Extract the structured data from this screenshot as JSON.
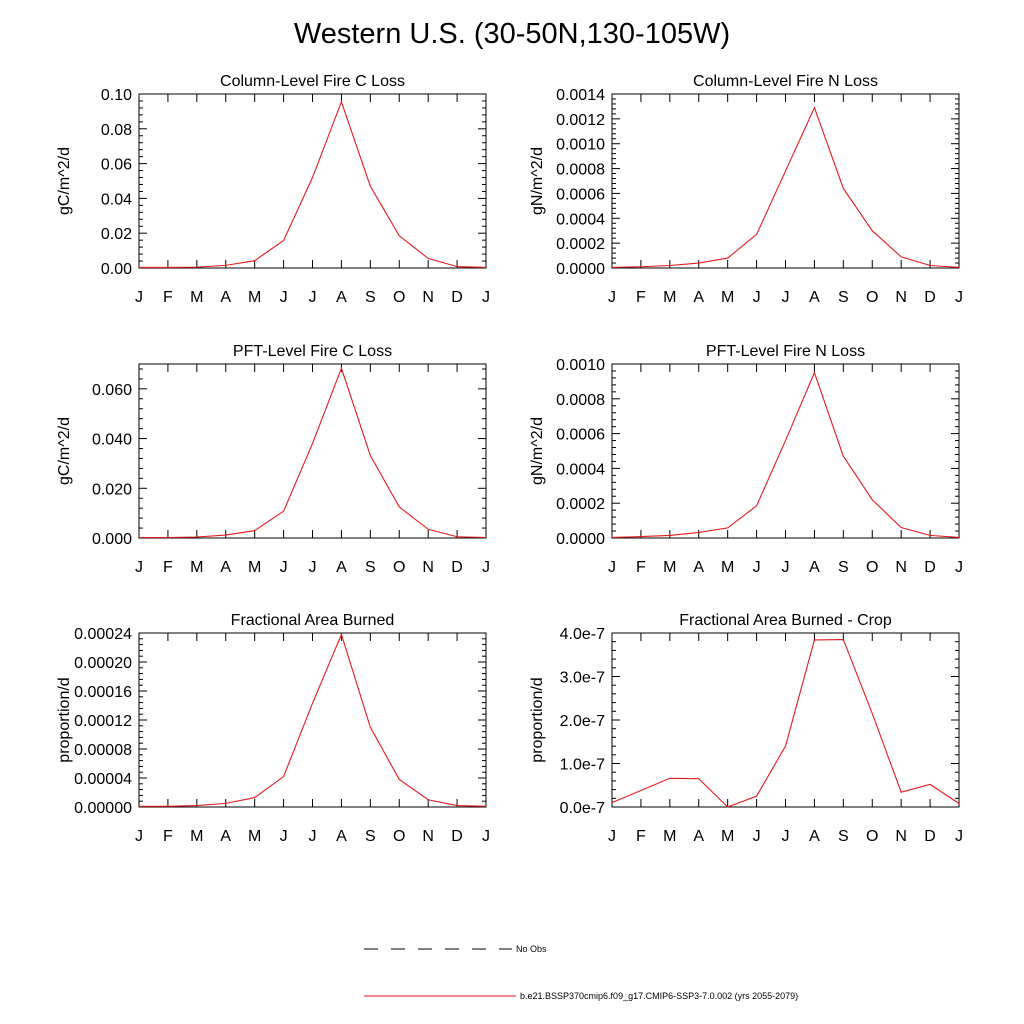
{
  "title": "Western U.S. (30-50N,130-105W)",
  "colors": {
    "series": "#e41a1c",
    "obs": "#000000",
    "axis": "#000000"
  },
  "legend": [
    {
      "label": "No Obs",
      "style": "dashed",
      "color": "#000000"
    },
    {
      "label": "b.e21.BSSP370cmip6.f09_g17.CMIP6-SSP3-7.0.002 (yrs 2055-2079)",
      "style": "solid",
      "color": "#e41a1c"
    }
  ],
  "chart_data": [
    {
      "type": "line",
      "title": "Column-Level Fire C Loss",
      "xlabel": "",
      "ylabel": "gC/m^2/d",
      "categories": [
        "J",
        "F",
        "M",
        "A",
        "M",
        "J",
        "J",
        "A",
        "S",
        "O",
        "N",
        "D",
        "J"
      ],
      "ylim": [
        0,
        0.1
      ],
      "yticks": [
        "0.00",
        "0.02",
        "0.04",
        "0.06",
        "0.08",
        "0.10"
      ],
      "ytick_values": [
        0,
        0.02,
        0.04,
        0.06,
        0.08,
        0.1
      ],
      "series": [
        {
          "values": [
            0.0003,
            0.0003,
            0.0005,
            0.0015,
            0.0042,
            0.0158,
            0.052,
            0.0955,
            0.047,
            0.0185,
            0.0055,
            0.0008,
            0.0003
          ]
        }
      ]
    },
    {
      "type": "line",
      "title": "Column-Level Fire N Loss",
      "xlabel": "",
      "ylabel": "gN/m^2/d",
      "categories": [
        "J",
        "F",
        "M",
        "A",
        "M",
        "J",
        "J",
        "A",
        "S",
        "O",
        "N",
        "D",
        "J"
      ],
      "ylim": [
        0,
        0.0014
      ],
      "yticks": [
        "0.0000",
        "0.0002",
        "0.0004",
        "0.0006",
        "0.0008",
        "0.0010",
        "0.0012",
        "0.0014"
      ],
      "ytick_values": [
        0,
        0.0002,
        0.0004,
        0.0006,
        0.0008,
        0.001,
        0.0012,
        0.0014
      ],
      "series": [
        {
          "values": [
            5e-06,
            1e-05,
            2e-05,
            4e-05,
            8e-05,
            0.00027,
            0.00078,
            0.00129,
            0.00064,
            0.0003,
            9e-05,
            2e-05,
            5e-06
          ]
        }
      ]
    },
    {
      "type": "line",
      "title": "PFT-Level Fire C Loss",
      "xlabel": "",
      "ylabel": "gC/m^2/d",
      "categories": [
        "J",
        "F",
        "M",
        "A",
        "M",
        "J",
        "J",
        "A",
        "S",
        "O",
        "N",
        "D",
        "J"
      ],
      "ylim": [
        0,
        0.07
      ],
      "yticks": [
        "0.000",
        "0.020",
        "0.040",
        "0.060"
      ],
      "ytick_values": [
        0,
        0.02,
        0.04,
        0.06
      ],
      "series": [
        {
          "values": [
            0.0002,
            0.0002,
            0.0004,
            0.0012,
            0.003,
            0.0108,
            0.038,
            0.0683,
            0.0332,
            0.0125,
            0.0035,
            0.0005,
            0.0002
          ]
        }
      ]
    },
    {
      "type": "line",
      "title": "PFT-Level Fire N Loss",
      "xlabel": "",
      "ylabel": "gN/m^2/d",
      "categories": [
        "J",
        "F",
        "M",
        "A",
        "M",
        "J",
        "J",
        "A",
        "S",
        "O",
        "N",
        "D",
        "J"
      ],
      "ylim": [
        0,
        0.001
      ],
      "yticks": [
        "0.0000",
        "0.0002",
        "0.0004",
        "0.0006",
        "0.0008",
        "0.0010"
      ],
      "ytick_values": [
        0,
        0.0002,
        0.0004,
        0.0006,
        0.0008,
        0.001
      ],
      "series": [
        {
          "values": [
            3e-06,
            8e-06,
            1.5e-05,
            3.2e-05,
            5.8e-05,
            0.000185,
            0.00056,
            0.00095,
            0.00047,
            0.00022,
            6e-05,
            1.5e-05,
            3e-06
          ]
        }
      ]
    },
    {
      "type": "line",
      "title": "Fractional Area Burned",
      "xlabel": "",
      "ylabel": "proportion/d",
      "categories": [
        "J",
        "F",
        "M",
        "A",
        "M",
        "J",
        "J",
        "A",
        "S",
        "O",
        "N",
        "D",
        "J"
      ],
      "ylim": [
        0,
        0.00024
      ],
      "yticks": [
        "0.00000",
        "0.00004",
        "0.00008",
        "0.00012",
        "0.00016",
        "0.00020",
        "0.00024"
      ],
      "ytick_values": [
        0,
        4e-05,
        8e-05,
        0.00012,
        0.00016,
        0.0002,
        0.00024
      ],
      "series": [
        {
          "values": [
            1e-06,
            1e-06,
            2e-06,
            5e-06,
            1.3e-05,
            4.2e-05,
            0.000143,
            0.000238,
            0.00011,
            3.8e-05,
            1e-05,
            2e-06,
            1e-06
          ]
        }
      ]
    },
    {
      "type": "line",
      "title": "Fractional Area Burned - Crop",
      "xlabel": "",
      "ylabel": "proportion/d",
      "categories": [
        "J",
        "F",
        "M",
        "A",
        "M",
        "J",
        "J",
        "A",
        "S",
        "O",
        "N",
        "D",
        "J"
      ],
      "ylim": [
        0,
        4e-07
      ],
      "yticks": [
        "0.0e-7",
        "1.0e-7",
        "2.0e-7",
        "3.0e-7",
        "4.0e-7"
      ],
      "ytick_values": [
        0,
        1e-07,
        2e-07,
        3e-07,
        4e-07
      ],
      "series": [
        {
          "values": [
            1e-08,
            3.8e-08,
            6.6e-08,
            6.5e-08,
            0.0,
            2.5e-08,
            1.4e-07,
            3.84e-07,
            3.85e-07,
            2.15e-07,
            3.4e-08,
            5.2e-08,
            8e-09
          ]
        }
      ]
    }
  ]
}
